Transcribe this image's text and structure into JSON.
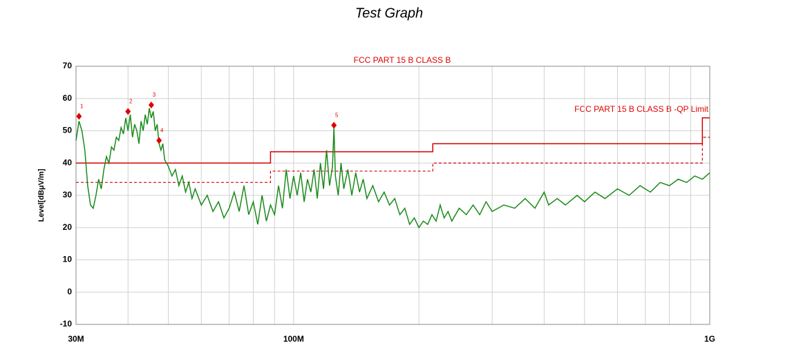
{
  "chart_data": {
    "type": "line",
    "title": "Test Graph",
    "subtitle": "FCC PART 15 B CLASS B",
    "annotation": "FCC PART 15 B CLASS B -QP Limit",
    "y_label": "Level[dBμV/m]",
    "xlog": true,
    "xlim": [
      30,
      1000
    ],
    "xticks": [
      {
        "value": 30,
        "label": "30M"
      },
      {
        "value": 100,
        "label": "100M"
      },
      {
        "value": 1000,
        "label": "1G"
      }
    ],
    "xgrid": [
      40,
      50,
      60,
      70,
      80,
      90,
      200,
      300,
      400,
      500,
      600,
      700,
      800,
      900
    ],
    "ylim": [
      -10,
      70
    ],
    "yticks": [
      -10,
      0,
      10,
      20,
      30,
      40,
      50,
      60,
      70
    ],
    "grid": true,
    "series": [
      {
        "color": "#d40000",
        "dash": false,
        "x": [
          30,
          88,
          88,
          216,
          216,
          960,
          960,
          1000
        ],
        "values": [
          40,
          40,
          43.5,
          43.5,
          46,
          46,
          54,
          54
        ]
      },
      {
        "color": "#d40000",
        "dash": true,
        "x": [
          30,
          88,
          88,
          216,
          216,
          960,
          960,
          1000
        ],
        "values": [
          34,
          34,
          37.5,
          37.5,
          40,
          40,
          48,
          48
        ]
      },
      {
        "color": "#1a8a1a",
        "dash": false,
        "x": [
          30,
          30.5,
          31,
          31.5,
          32,
          32.5,
          33,
          33.5,
          34,
          34.5,
          35,
          35.5,
          36,
          36.5,
          37,
          37.5,
          38,
          38.5,
          39,
          39.5,
          40,
          40.5,
          41,
          41.5,
          42,
          42.5,
          43,
          43.5,
          44,
          44.5,
          45,
          45.5,
          46,
          46.5,
          47,
          47.5,
          48,
          48.5,
          49,
          50,
          51,
          52,
          53,
          54,
          55,
          56,
          57,
          58,
          60,
          62,
          64,
          66,
          68,
          70,
          72,
          74,
          76,
          78,
          80,
          82,
          84,
          86,
          88,
          90,
          92,
          94,
          96,
          98,
          100,
          102,
          104,
          106,
          108,
          110,
          112,
          114,
          116,
          118,
          120,
          122,
          124,
          125,
          126,
          128,
          130,
          132,
          135,
          138,
          141,
          144,
          147,
          150,
          155,
          160,
          165,
          170,
          175,
          180,
          185,
          190,
          195,
          200,
          205,
          210,
          215,
          220,
          225,
          230,
          235,
          240,
          250,
          260,
          270,
          280,
          290,
          300,
          320,
          340,
          360,
          380,
          400,
          410,
          430,
          450,
          480,
          500,
          530,
          560,
          600,
          640,
          680,
          720,
          760,
          800,
          840,
          880,
          920,
          960,
          1000
        ],
        "values": [
          47,
          53,
          50,
          44,
          33,
          27,
          26,
          30,
          35,
          32,
          38,
          42,
          40,
          45,
          44,
          48,
          47,
          51,
          49,
          54,
          50,
          55,
          48,
          52,
          50,
          46,
          53,
          50,
          55,
          52,
          57,
          54,
          56,
          50,
          52,
          46,
          44,
          46,
          41,
          39,
          36,
          38,
          33,
          36,
          31,
          34,
          29,
          32,
          27,
          30,
          25,
          28,
          23,
          26,
          31,
          25,
          33,
          24,
          28,
          21,
          30,
          22,
          27,
          24,
          33,
          26,
          38,
          29,
          36,
          30,
          37,
          28,
          35,
          31,
          38,
          29,
          40,
          32,
          44,
          33,
          39,
          51,
          36,
          30,
          40,
          32,
          38,
          30,
          37,
          31,
          35,
          29,
          33,
          28,
          31,
          27,
          29,
          24,
          26,
          21,
          23,
          20,
          22,
          21,
          24,
          22,
          27,
          23,
          25,
          22,
          26,
          24,
          27,
          24,
          28,
          25,
          27,
          26,
          29,
          26,
          31,
          27,
          29,
          27,
          30,
          28,
          31,
          29,
          32,
          30,
          33,
          31,
          34,
          33,
          35,
          34,
          36,
          35,
          37
        ]
      }
    ],
    "markers": {
      "color": "#e00000",
      "x": [
        30.5,
        40,
        45.5,
        47.5,
        125
      ],
      "values": [
        54.5,
        56,
        58,
        47,
        51.7
      ],
      "labels": [
        "1",
        "2",
        "3",
        "4",
        "5"
      ]
    }
  }
}
